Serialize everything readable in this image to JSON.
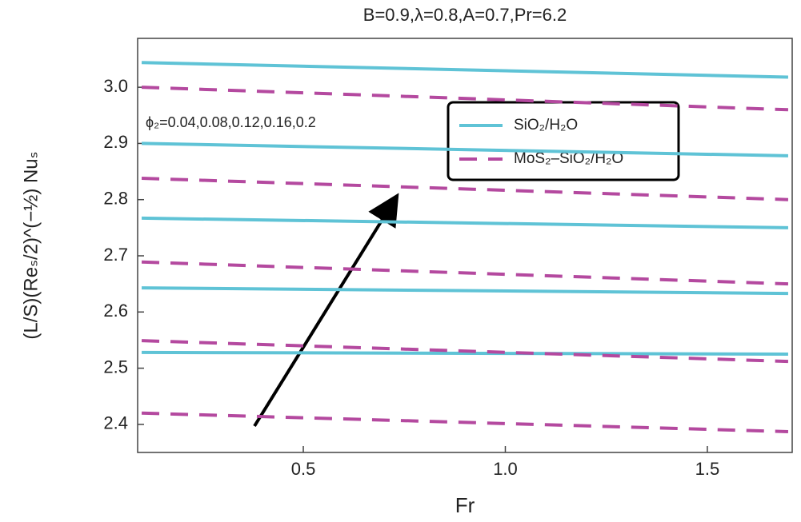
{
  "chart_data": {
    "type": "line",
    "title": "B=0.9,λ=0.8,A=0.7,Pr=6.2",
    "x_label": "Fr",
    "y_label": "(L/S)(Reₛ/2)^(−½) Nuₛ",
    "annotation": "ϕ₂=0.04,0.08,0.12,0.16,0.2",
    "x": [
      0.1,
      1.7
    ],
    "xlim": [
      0.09,
      1.71
    ],
    "xticks": [
      0.5,
      {
        "value": 1,
        "label": "1.0"
      },
      1.5
    ],
    "ylim": [
      2.35,
      3.087
    ],
    "yticks": [
      2.4,
      2.5,
      2.6,
      2.7,
      2.8,
      2.9,
      {
        "value": 3,
        "label": "3.0"
      }
    ],
    "legend": "upper right",
    "series": [
      {
        "name": "SiO₂/H₂O",
        "color": "#5fc3d6",
        "dashed": false,
        "curves": [
          [
            3.044,
            3.018
          ],
          [
            2.9,
            2.878
          ],
          [
            2.767,
            2.75
          ],
          [
            2.643,
            2.633
          ],
          [
            2.528,
            2.525
          ]
        ]
      },
      {
        "name": "MoS₂–SiO₂/H₂O",
        "color": "#b4499f",
        "dashed": true,
        "curves": [
          [
            3.0,
            2.96
          ],
          [
            2.838,
            2.8
          ],
          [
            2.689,
            2.65
          ],
          [
            2.549,
            2.512
          ],
          [
            2.42,
            2.387
          ]
        ]
      }
    ]
  }
}
